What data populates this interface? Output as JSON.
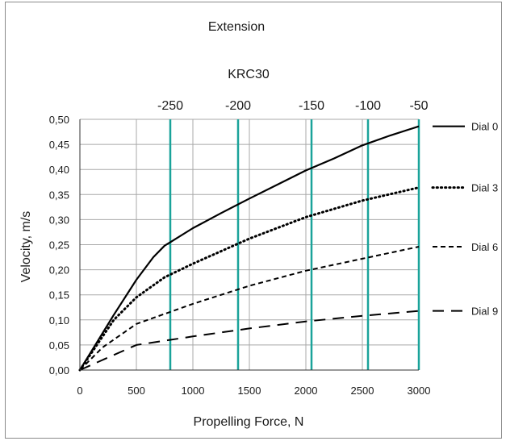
{
  "chart_data": {
    "type": "line",
    "title": "Extension",
    "subtitle": "KRC30",
    "xlabel": "Propelling Force, N",
    "ylabel": "Velocity, m/s",
    "xlim": [
      0,
      3000
    ],
    "ylim": [
      0,
      0.5
    ],
    "x_ticks": [
      0,
      500,
      1000,
      1500,
      2000,
      2500,
      3000
    ],
    "x_tick_labels": [
      "0",
      "500",
      "1000",
      "1500",
      "2000",
      "2500",
      "3000"
    ],
    "y_ticks": [
      0,
      0.05,
      0.1,
      0.15,
      0.2,
      0.25,
      0.3,
      0.35,
      0.4,
      0.45,
      0.5
    ],
    "y_tick_labels": [
      "0,00",
      "0,05",
      "0,10",
      "0,15",
      "0,20",
      "0,25",
      "0,30",
      "0,35",
      "0,40",
      "0,45",
      "0,50"
    ],
    "grid": true,
    "legend_position": "right",
    "top_axis": {
      "positions": [
        800,
        1400,
        2050,
        2550,
        3000
      ],
      "labels": [
        "-250",
        "-200",
        "-150",
        "-100",
        "-50"
      ],
      "line_color": "#1aa39a"
    },
    "series": [
      {
        "name": "Dial 0",
        "style": "solid",
        "x": [
          0,
          150,
          300,
          500,
          650,
          750,
          800,
          1000,
          1250,
          1500,
          1750,
          2000,
          2250,
          2500,
          2750,
          3000
        ],
        "y": [
          0,
          0.055,
          0.11,
          0.18,
          0.225,
          0.248,
          0.255,
          0.283,
          0.313,
          0.342,
          0.37,
          0.398,
          0.422,
          0.448,
          0.468,
          0.486
        ]
      },
      {
        "name": "Dial 3",
        "style": "dotted",
        "x": [
          0,
          150,
          300,
          500,
          750,
          1000,
          1500,
          2000,
          2500,
          3000
        ],
        "y": [
          0,
          0.05,
          0.1,
          0.145,
          0.185,
          0.212,
          0.262,
          0.305,
          0.338,
          0.364
        ]
      },
      {
        "name": "Dial 6",
        "style": "short-dash",
        "x": [
          0,
          200,
          500,
          1000,
          1500,
          2000,
          2500,
          3000
        ],
        "y": [
          0,
          0.045,
          0.092,
          0.132,
          0.168,
          0.198,
          0.222,
          0.246
        ]
      },
      {
        "name": "Dial 9",
        "style": "long-dash",
        "x": [
          0,
          250,
          500,
          1000,
          1500,
          2000,
          2500,
          3000
        ],
        "y": [
          0,
          0.025,
          0.05,
          0.067,
          0.083,
          0.097,
          0.108,
          0.118
        ]
      }
    ]
  }
}
